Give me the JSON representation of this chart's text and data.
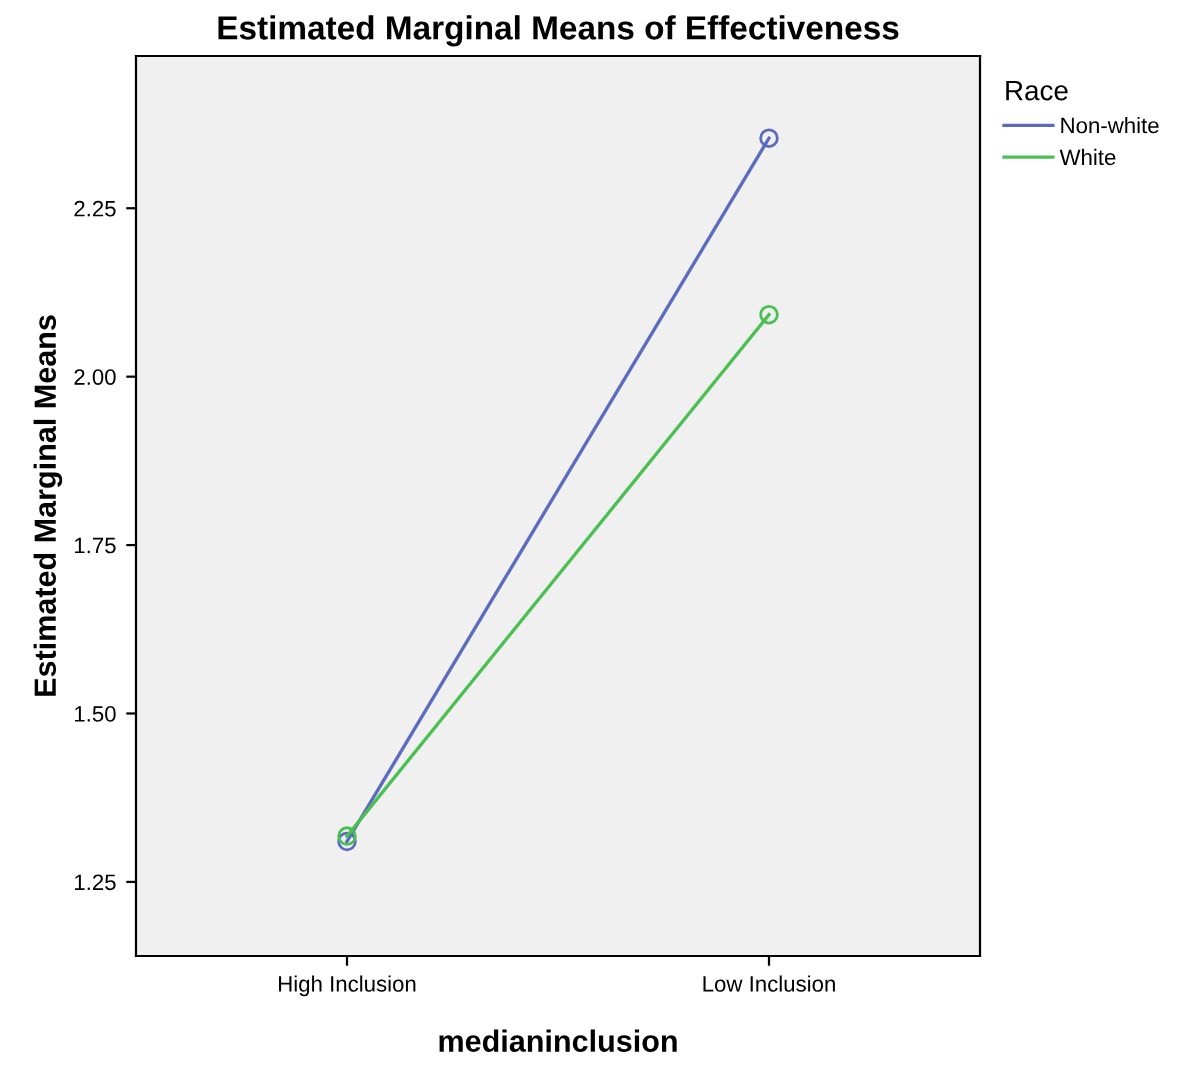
{
  "chart_data": {
    "type": "line",
    "title": "Estimated Marginal Means of Effectiveness",
    "xlabel": "medianinclusion",
    "ylabel": "Estimated Marginal Means",
    "legend_title": "Race",
    "legend": "right",
    "categories": [
      "High Inclusion",
      "Low Inclusion"
    ],
    "series": [
      {
        "name": "Non-white",
        "color": "#5b6bbf",
        "values": [
          1.31,
          2.354
        ]
      },
      {
        "name": "White",
        "color": "#4cbf52",
        "values": [
          1.318,
          2.092
        ]
      }
    ],
    "marker": "circle",
    "line_style": "solid",
    "grid": false,
    "ylim": [
      1.14,
      2.476
    ],
    "yticks": [
      {
        "value": 1.25,
        "label": "1.25"
      },
      {
        "value": 1.5,
        "label": "1.50"
      },
      {
        "value": 1.75,
        "label": "1.75"
      },
      {
        "value": 2.0,
        "label": "2.00"
      },
      {
        "value": 2.25,
        "label": "2.25"
      }
    ]
  }
}
